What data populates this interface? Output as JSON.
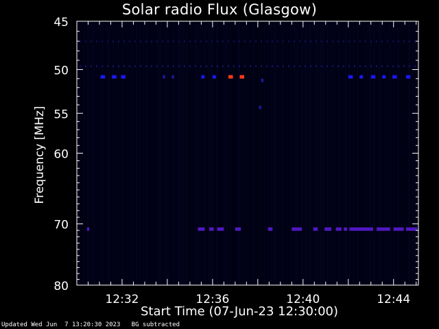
{
  "chart_data": {
    "type": "heatmap",
    "title": "Solar radio Flux (Glasgow)",
    "xlabel": "Start Time (07-Jun-23 12:30:00)",
    "ylabel": "Frequency [MHz]",
    "x_unit": "minutes after 12:30:00",
    "xlim": [
      0,
      15.1
    ],
    "ylim": [
      45,
      80
    ],
    "y_scale": "log",
    "grid": false,
    "x_ticks": [
      {
        "value": 2,
        "label": "12:32"
      },
      {
        "value": 6,
        "label": "12:36"
      },
      {
        "value": 10,
        "label": "12:40"
      },
      {
        "value": 14,
        "label": "12:44"
      }
    ],
    "y_ticks": [
      {
        "value": 45,
        "label": "45"
      },
      {
        "value": 50,
        "label": "50"
      },
      {
        "value": 55,
        "label": "55"
      },
      {
        "value": 60,
        "label": "60"
      },
      {
        "value": 70,
        "label": "70"
      },
      {
        "value": 80,
        "label": "80"
      }
    ],
    "colors": {
      "background": "#000010",
      "weak": "#1a1aa0",
      "medium": "#1818f0",
      "band70": "#5018c0",
      "strong": "#ff3a1a"
    },
    "bursts": [
      {
        "freq": 50.8,
        "t_start": 1.05,
        "t_end": 1.25,
        "level": "medium"
      },
      {
        "freq": 50.8,
        "t_start": 1.55,
        "t_end": 1.75,
        "level": "medium"
      },
      {
        "freq": 50.8,
        "t_start": 1.95,
        "t_end": 2.15,
        "level": "medium"
      },
      {
        "freq": 50.8,
        "t_start": 3.8,
        "t_end": 3.9,
        "level": "weak"
      },
      {
        "freq": 50.8,
        "t_start": 4.2,
        "t_end": 4.3,
        "level": "weak"
      },
      {
        "freq": 50.8,
        "t_start": 5.5,
        "t_end": 5.65,
        "level": "medium"
      },
      {
        "freq": 50.8,
        "t_start": 6.0,
        "t_end": 6.15,
        "level": "medium"
      },
      {
        "freq": 50.8,
        "t_start": 6.7,
        "t_end": 6.9,
        "level": "strong"
      },
      {
        "freq": 50.8,
        "t_start": 7.2,
        "t_end": 7.4,
        "level": "strong"
      },
      {
        "freq": 51.2,
        "t_start": 8.15,
        "t_end": 8.25,
        "level": "weak"
      },
      {
        "freq": 50.8,
        "t_start": 12.0,
        "t_end": 12.2,
        "level": "medium"
      },
      {
        "freq": 50.8,
        "t_start": 12.5,
        "t_end": 12.65,
        "level": "medium"
      },
      {
        "freq": 50.8,
        "t_start": 13.0,
        "t_end": 13.2,
        "level": "medium"
      },
      {
        "freq": 50.8,
        "t_start": 13.5,
        "t_end": 13.65,
        "level": "medium"
      },
      {
        "freq": 50.8,
        "t_start": 13.95,
        "t_end": 14.15,
        "level": "medium"
      },
      {
        "freq": 50.8,
        "t_start": 14.55,
        "t_end": 14.75,
        "level": "medium"
      },
      {
        "freq": 54.3,
        "t_start": 8.05,
        "t_end": 8.15,
        "level": "weak"
      },
      {
        "freq": 70.8,
        "t_start": 0.45,
        "t_end": 0.55,
        "level": "band70"
      },
      {
        "freq": 70.8,
        "t_start": 5.35,
        "t_end": 5.65,
        "level": "band70"
      },
      {
        "freq": 70.8,
        "t_start": 5.85,
        "t_end": 6.05,
        "level": "band70"
      },
      {
        "freq": 70.8,
        "t_start": 6.2,
        "t_end": 6.5,
        "level": "band70"
      },
      {
        "freq": 70.8,
        "t_start": 7.0,
        "t_end": 7.25,
        "level": "band70"
      },
      {
        "freq": 70.8,
        "t_start": 8.45,
        "t_end": 8.65,
        "level": "band70"
      },
      {
        "freq": 70.8,
        "t_start": 9.5,
        "t_end": 9.95,
        "level": "band70"
      },
      {
        "freq": 70.8,
        "t_start": 10.45,
        "t_end": 10.65,
        "level": "band70"
      },
      {
        "freq": 70.8,
        "t_start": 10.95,
        "t_end": 11.25,
        "level": "band70"
      },
      {
        "freq": 70.8,
        "t_start": 11.45,
        "t_end": 11.7,
        "level": "band70"
      },
      {
        "freq": 70.8,
        "t_start": 11.8,
        "t_end": 11.95,
        "level": "band70"
      },
      {
        "freq": 70.8,
        "t_start": 12.05,
        "t_end": 13.1,
        "level": "band70"
      },
      {
        "freq": 70.8,
        "t_start": 13.25,
        "t_end": 13.85,
        "level": "band70"
      },
      {
        "freq": 70.8,
        "t_start": 14.0,
        "t_end": 14.45,
        "level": "band70"
      },
      {
        "freq": 70.8,
        "t_start": 14.55,
        "t_end": 15.05,
        "level": "band70"
      }
    ]
  },
  "footer": {
    "updated": "Updated Wed Jun  7 13:20:30 2023",
    "note": "BG subtracted"
  }
}
